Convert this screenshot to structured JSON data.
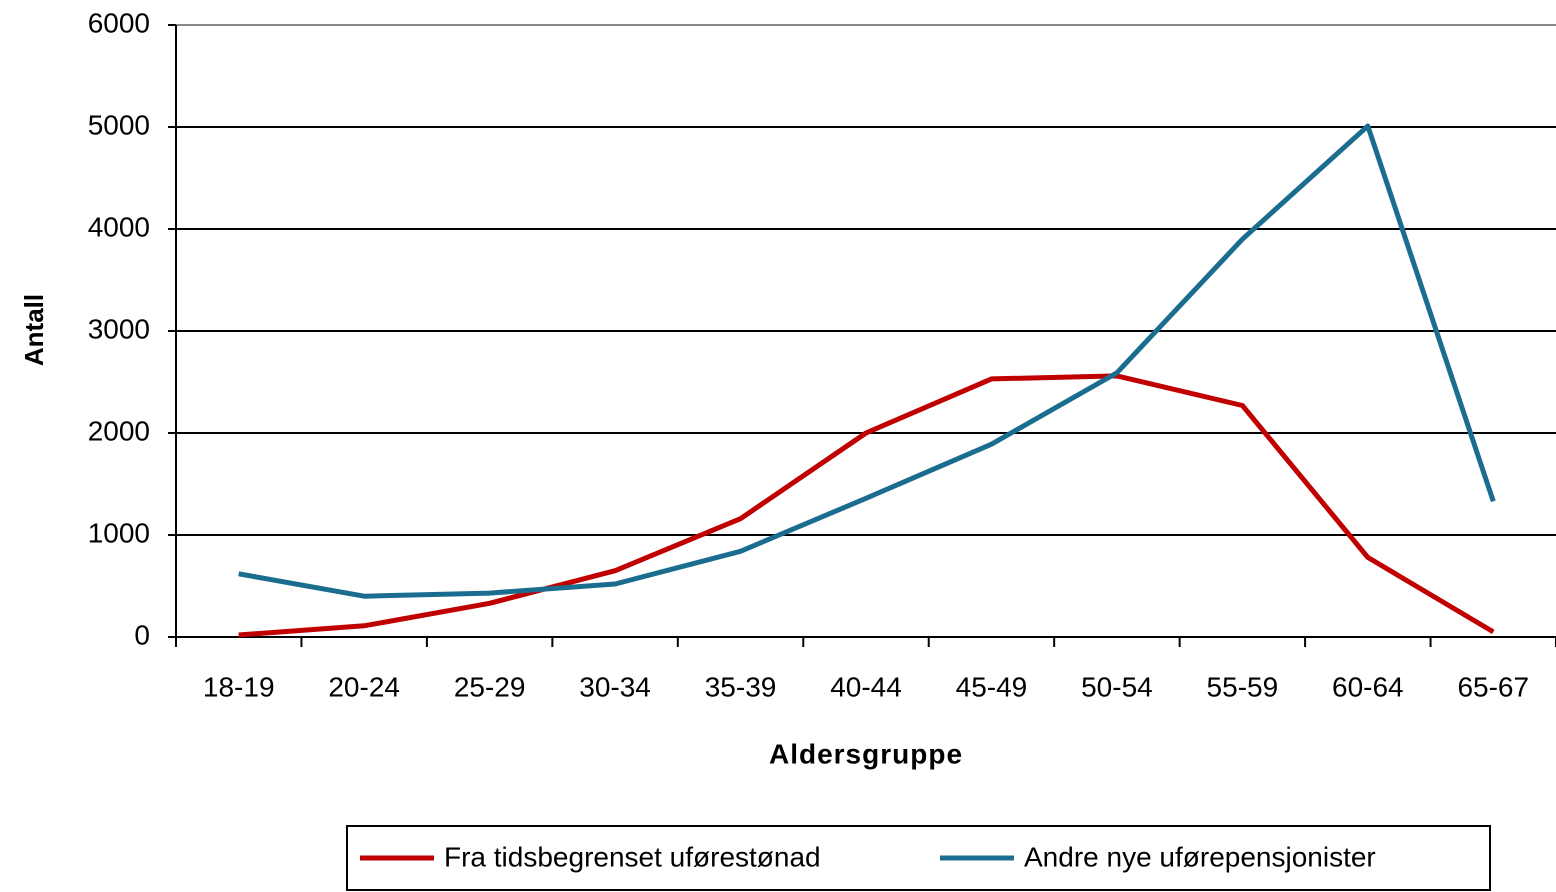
{
  "chart_data": {
    "type": "line",
    "y_label": "Antall",
    "x_label": "Aldersgruppe",
    "categories": [
      "18-19",
      "20-24",
      "25-29",
      "30-34",
      "35-39",
      "40-44",
      "45-49",
      "50-54",
      "55-59",
      "60-64",
      "65-67"
    ],
    "series": [
      {
        "name": "Fra tidsbegrenset uførestønad",
        "color": "#c00000",
        "values": [
          20,
          110,
          330,
          650,
          1160,
          2000,
          2530,
          2560,
          2270,
          780,
          50
        ]
      },
      {
        "name": "Andre nye uførepensjonister",
        "color": "#1b6d8f",
        "values": [
          620,
          400,
          430,
          520,
          840,
          1360,
          1890,
          2590,
          3900,
          5010,
          1330
        ]
      }
    ],
    "ylim": [
      0,
      6000
    ],
    "yticks": [
      0,
      1000,
      2000,
      3000,
      4000,
      5000,
      6000
    ],
    "grid": true,
    "legend": "bottom"
  }
}
